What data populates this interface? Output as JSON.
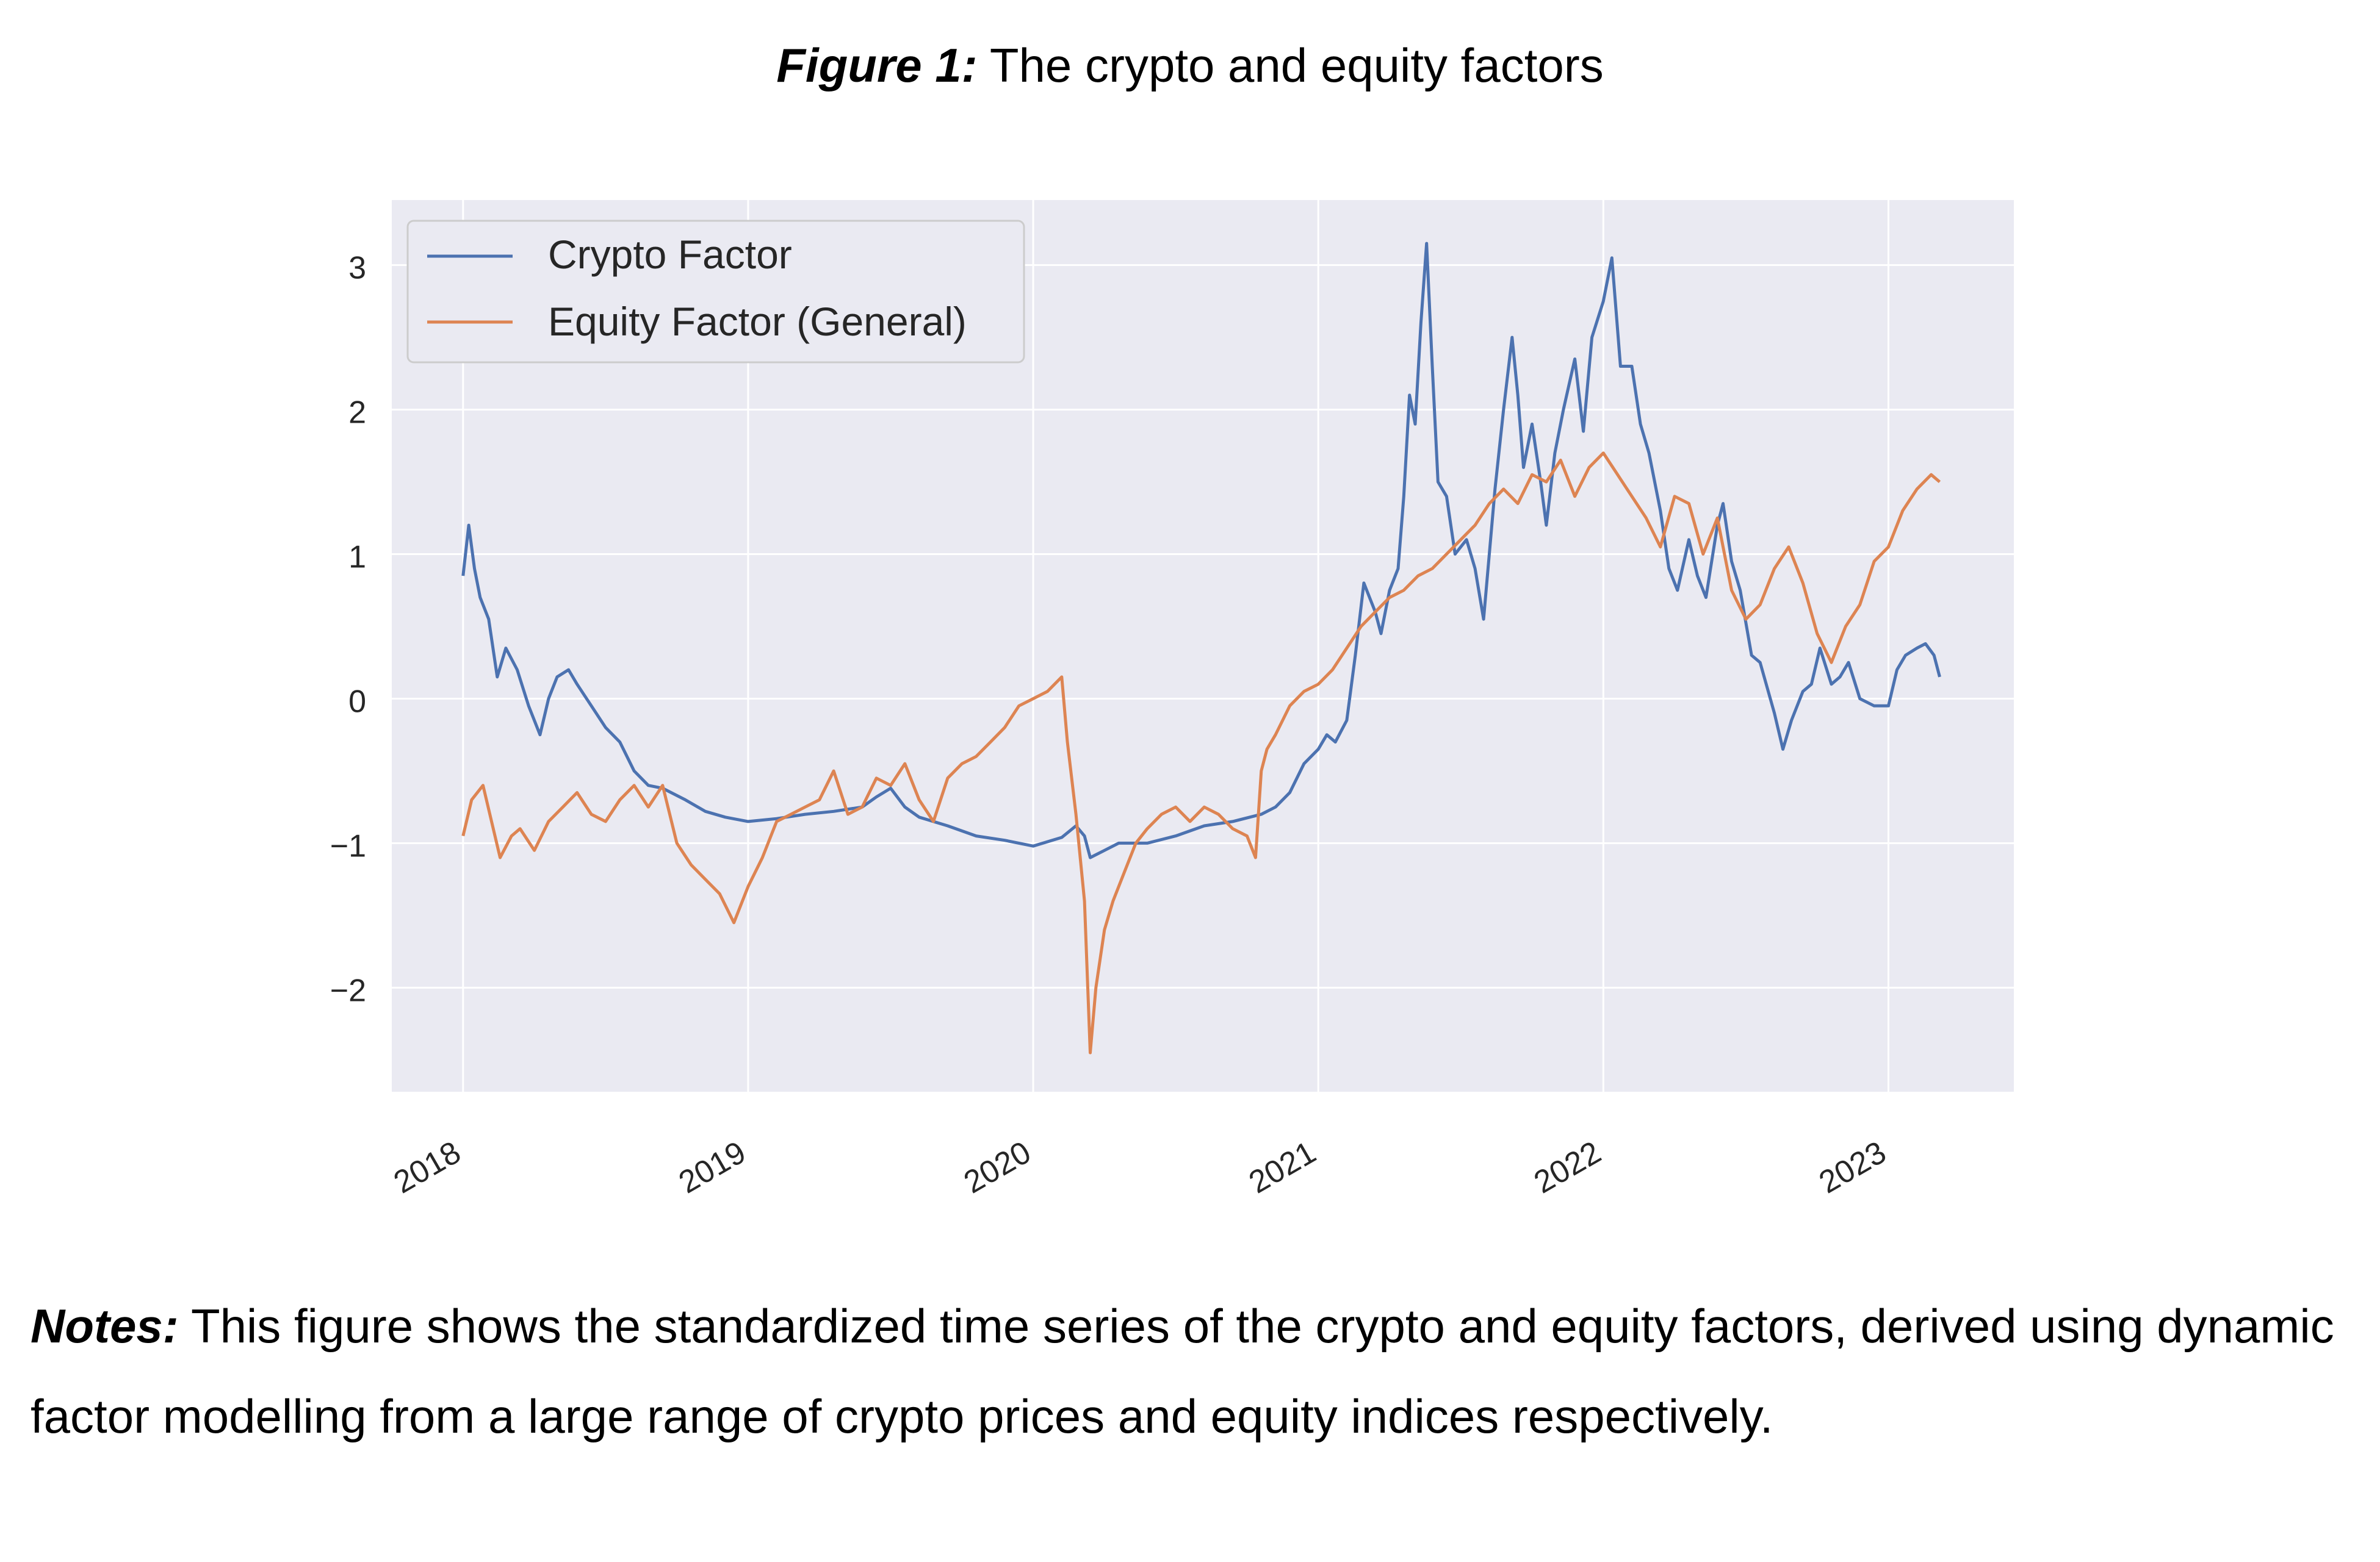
{
  "figure": {
    "title_lead": "Figure 1:",
    "title_text": "The crypto and equity factors"
  },
  "notes": {
    "lead": "Notes:",
    "text": "This figure shows the standardized time series of the crypto and equity factors, derived using dynamic factor modelling from a large range of crypto prices and equity indices respectively."
  },
  "colors": {
    "plot_background": "#eaeaf2",
    "grid": "#ffffff",
    "crypto": "#4c72b0",
    "equity": "#dd8452"
  },
  "chart_data": {
    "type": "line",
    "title": "",
    "xlabel": "",
    "ylabel": "",
    "xlim": [
      2017.75,
      2023.44
    ],
    "ylim": [
      -2.72,
      3.45
    ],
    "grid": true,
    "legend_position": "top-left",
    "x_ticks": [
      2018,
      2019,
      2020,
      2021,
      2022,
      2023
    ],
    "x_tick_labels": [
      "2018",
      "2019",
      "2020",
      "2021",
      "2022",
      "2023"
    ],
    "y_ticks": [
      -2,
      -1,
      0,
      1,
      2,
      3
    ],
    "y_tick_labels": [
      "−2",
      "−1",
      "0",
      "1",
      "2",
      "3"
    ],
    "series": [
      {
        "name": "Crypto Factor",
        "color": "#4c72b0",
        "x": [
          2018.0,
          2018.02,
          2018.04,
          2018.06,
          2018.09,
          2018.12,
          2018.15,
          2018.19,
          2018.23,
          2018.27,
          2018.3,
          2018.33,
          2018.37,
          2018.4,
          2018.45,
          2018.5,
          2018.55,
          2018.6,
          2018.65,
          2018.7,
          2018.78,
          2018.85,
          2018.92,
          2019.0,
          2019.1,
          2019.2,
          2019.3,
          2019.4,
          2019.45,
          2019.5,
          2019.55,
          2019.6,
          2019.7,
          2019.8,
          2019.9,
          2020.0,
          2020.1,
          2020.15,
          2020.18,
          2020.2,
          2020.25,
          2020.3,
          2020.4,
          2020.5,
          2020.6,
          2020.7,
          2020.8,
          2020.85,
          2020.9,
          2020.95,
          2021.0,
          2021.03,
          2021.06,
          2021.1,
          2021.13,
          2021.16,
          2021.2,
          2021.22,
          2021.25,
          2021.28,
          2021.3,
          2021.32,
          2021.34,
          2021.36,
          2021.38,
          2021.4,
          2021.42,
          2021.45,
          2021.48,
          2021.52,
          2021.55,
          2021.58,
          2021.62,
          2021.65,
          2021.68,
          2021.7,
          2021.72,
          2021.75,
          2021.78,
          2021.8,
          2021.83,
          2021.86,
          2021.9,
          2021.93,
          2021.96,
          2022.0,
          2022.03,
          2022.06,
          2022.1,
          2022.13,
          2022.16,
          2022.2,
          2022.23,
          2022.26,
          2022.3,
          2022.33,
          2022.36,
          2022.4,
          2022.42,
          2022.45,
          2022.48,
          2022.52,
          2022.55,
          2022.6,
          2022.63,
          2022.66,
          2022.7,
          2022.73,
          2022.76,
          2022.8,
          2022.83,
          2022.86,
          2022.9,
          2022.95,
          2023.0,
          2023.03,
          2023.06,
          2023.1,
          2023.13,
          2023.16,
          2023.18
        ],
        "values": [
          0.85,
          1.2,
          0.9,
          0.7,
          0.55,
          0.15,
          0.35,
          0.2,
          -0.05,
          -0.25,
          0.0,
          0.15,
          0.2,
          0.1,
          -0.05,
          -0.2,
          -0.3,
          -0.5,
          -0.6,
          -0.62,
          -0.7,
          -0.78,
          -0.82,
          -0.85,
          -0.83,
          -0.8,
          -0.78,
          -0.75,
          -0.68,
          -0.62,
          -0.75,
          -0.82,
          -0.88,
          -0.95,
          -0.98,
          -1.02,
          -0.96,
          -0.88,
          -0.95,
          -1.1,
          -1.05,
          -1.0,
          -1.0,
          -0.95,
          -0.88,
          -0.85,
          -0.8,
          -0.75,
          -0.65,
          -0.45,
          -0.35,
          -0.25,
          -0.3,
          -0.15,
          0.3,
          0.8,
          0.6,
          0.45,
          0.75,
          0.9,
          1.4,
          2.1,
          1.9,
          2.6,
          3.15,
          2.3,
          1.5,
          1.4,
          1.0,
          1.1,
          0.9,
          0.55,
          1.45,
          2.0,
          2.5,
          2.1,
          1.6,
          1.9,
          1.5,
          1.2,
          1.7,
          2.0,
          2.35,
          1.85,
          2.5,
          2.75,
          3.05,
          2.3,
          2.3,
          1.9,
          1.7,
          1.3,
          0.9,
          0.75,
          1.1,
          0.85,
          0.7,
          1.2,
          1.35,
          0.95,
          0.75,
          0.3,
          0.25,
          -0.1,
          -0.35,
          -0.15,
          0.05,
          0.1,
          0.35,
          0.1,
          0.15,
          0.25,
          0.0,
          -0.05,
          -0.05,
          0.2,
          0.3,
          0.35,
          0.38,
          0.3,
          0.15
        ]
      },
      {
        "name": "Equity Factor (General)",
        "color": "#dd8452",
        "x": [
          2018.0,
          2018.03,
          2018.07,
          2018.1,
          2018.13,
          2018.17,
          2018.2,
          2018.25,
          2018.3,
          2018.35,
          2018.4,
          2018.45,
          2018.5,
          2018.55,
          2018.6,
          2018.65,
          2018.7,
          2018.75,
          2018.8,
          2018.85,
          2018.9,
          2018.95,
          2019.0,
          2019.05,
          2019.1,
          2019.15,
          2019.2,
          2019.25,
          2019.3,
          2019.35,
          2019.4,
          2019.45,
          2019.5,
          2019.55,
          2019.6,
          2019.65,
          2019.7,
          2019.75,
          2019.8,
          2019.85,
          2019.9,
          2019.95,
          2020.0,
          2020.05,
          2020.1,
          2020.12,
          2020.15,
          2020.18,
          2020.2,
          2020.22,
          2020.25,
          2020.28,
          2020.32,
          2020.36,
          2020.4,
          2020.45,
          2020.5,
          2020.55,
          2020.6,
          2020.65,
          2020.7,
          2020.75,
          2020.78,
          2020.8,
          2020.82,
          2020.85,
          2020.9,
          2020.95,
          2021.0,
          2021.05,
          2021.1,
          2021.15,
          2021.2,
          2021.25,
          2021.3,
          2021.35,
          2021.4,
          2021.45,
          2021.5,
          2021.55,
          2021.6,
          2021.65,
          2021.7,
          2021.75,
          2021.8,
          2021.85,
          2021.9,
          2021.95,
          2022.0,
          2022.05,
          2022.1,
          2022.15,
          2022.2,
          2022.25,
          2022.3,
          2022.35,
          2022.4,
          2022.45,
          2022.5,
          2022.55,
          2022.6,
          2022.65,
          2022.7,
          2022.75,
          2022.8,
          2022.85,
          2022.9,
          2022.95,
          2023.0,
          2023.05,
          2023.1,
          2023.15,
          2023.18
        ],
        "values": [
          -0.95,
          -0.7,
          -0.6,
          -0.85,
          -1.1,
          -0.95,
          -0.9,
          -1.05,
          -0.85,
          -0.75,
          -0.65,
          -0.8,
          -0.85,
          -0.7,
          -0.6,
          -0.75,
          -0.6,
          -1.0,
          -1.15,
          -1.25,
          -1.35,
          -1.55,
          -1.3,
          -1.1,
          -0.85,
          -0.8,
          -0.75,
          -0.7,
          -0.5,
          -0.8,
          -0.75,
          -0.55,
          -0.6,
          -0.45,
          -0.7,
          -0.85,
          -0.55,
          -0.45,
          -0.4,
          -0.3,
          -0.2,
          -0.05,
          0.0,
          0.05,
          0.15,
          -0.3,
          -0.8,
          -1.4,
          -2.45,
          -2.0,
          -1.6,
          -1.4,
          -1.2,
          -1.0,
          -0.9,
          -0.8,
          -0.75,
          -0.85,
          -0.75,
          -0.8,
          -0.9,
          -0.95,
          -1.1,
          -0.5,
          -0.35,
          -0.25,
          -0.05,
          0.05,
          0.1,
          0.2,
          0.35,
          0.5,
          0.6,
          0.7,
          0.75,
          0.85,
          0.9,
          1.0,
          1.1,
          1.2,
          1.35,
          1.45,
          1.35,
          1.55,
          1.5,
          1.65,
          1.4,
          1.6,
          1.7,
          1.55,
          1.4,
          1.25,
          1.05,
          1.4,
          1.35,
          1.0,
          1.25,
          0.75,
          0.55,
          0.65,
          0.9,
          1.05,
          0.8,
          0.45,
          0.25,
          0.5,
          0.65,
          0.95,
          1.05,
          1.3,
          1.45,
          1.55,
          1.5
        ]
      }
    ]
  }
}
